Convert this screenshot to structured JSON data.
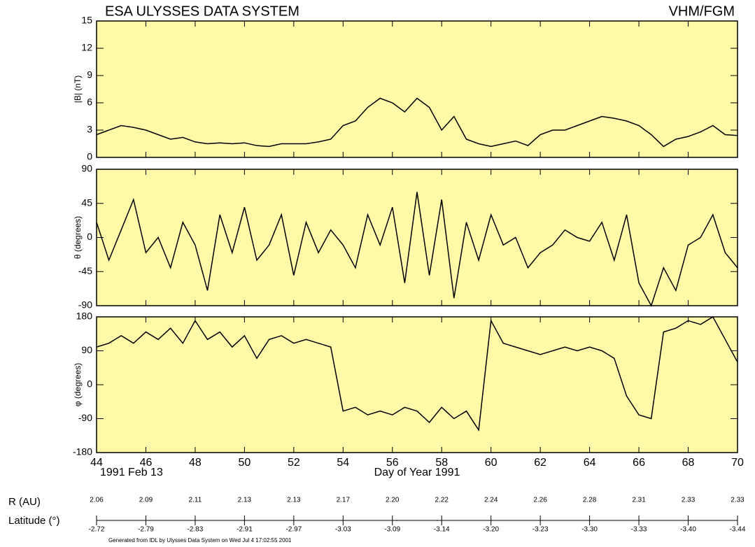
{
  "title": "ESA ULYSSES DATA SYSTEM",
  "instrument": "VHM/FGM",
  "chart_data": {
    "type": "line",
    "xlabel": "Day of Year 1991",
    "start_date": "1991 Feb 13",
    "xlim": [
      44,
      70
    ],
    "xticks": [
      44,
      46,
      48,
      50,
      52,
      54,
      56,
      58,
      60,
      62,
      64,
      66,
      68,
      70
    ],
    "x": [
      44,
      44.5,
      45,
      45.5,
      46,
      46.5,
      47,
      47.5,
      48,
      48.5,
      49,
      49.5,
      50,
      50.5,
      51,
      51.5,
      52,
      52.5,
      53,
      53.5,
      54,
      54.5,
      55,
      55.5,
      56,
      56.5,
      57,
      57.5,
      58,
      58.5,
      59,
      59.5,
      60,
      60.5,
      61,
      61.5,
      62,
      62.5,
      63,
      63.5,
      64,
      64.5,
      65,
      65.5,
      66,
      66.5,
      67,
      67.5,
      68,
      68.5,
      69,
      69.5,
      70
    ],
    "panels": [
      {
        "ylabel": "|B| (nT)",
        "color": "#000000",
        "ylim": [
          0,
          15
        ],
        "yticks": [
          0,
          3,
          6,
          9,
          12,
          15
        ],
        "values": [
          2.5,
          3,
          3.5,
          3.3,
          3,
          2.5,
          2,
          2.2,
          1.7,
          1.5,
          1.6,
          1.5,
          1.6,
          1.3,
          1.2,
          1.5,
          1.5,
          1.5,
          1.7,
          2,
          3.5,
          4,
          5.5,
          6.5,
          6,
          5,
          6.5,
          5.5,
          3,
          4.5,
          2,
          1.5,
          1.2,
          1.5,
          1.8,
          1.3,
          2.5,
          3,
          3,
          3.5,
          4,
          4.5,
          4.3,
          4,
          3.5,
          2.5,
          1.2,
          2,
          2.3,
          2.8,
          3.5,
          2.5,
          2.4
        ]
      },
      {
        "ylabel": "θ (degrees)",
        "color": "#000000",
        "ylim": [
          -90,
          90
        ],
        "yticks": [
          -90,
          -45,
          0,
          45,
          90
        ],
        "values": [
          20,
          -30,
          10,
          50,
          -20,
          0,
          -40,
          20,
          -10,
          -70,
          30,
          -20,
          40,
          -30,
          -10,
          30,
          -50,
          20,
          -20,
          10,
          -10,
          -40,
          30,
          -10,
          40,
          -60,
          60,
          -50,
          50,
          -80,
          20,
          -30,
          30,
          -10,
          0,
          -40,
          -20,
          -10,
          10,
          0,
          -5,
          20,
          -30,
          30,
          -60,
          -90,
          -40,
          -70,
          -10,
          0,
          30,
          -20,
          -40
        ]
      },
      {
        "ylabel": "φ (degrees)",
        "color": "#000000",
        "ylim": [
          -180,
          180
        ],
        "yticks": [
          -180,
          -90,
          0,
          90,
          180
        ],
        "values": [
          100,
          110,
          130,
          110,
          140,
          120,
          150,
          110,
          170,
          120,
          140,
          100,
          130,
          70,
          120,
          130,
          110,
          120,
          110,
          100,
          -70,
          -60,
          -80,
          -70,
          -80,
          -60,
          -70,
          -100,
          -60,
          -90,
          -70,
          -120,
          170,
          110,
          100,
          90,
          80,
          90,
          100,
          90,
          100,
          90,
          70,
          -30,
          -80,
          -90,
          140,
          150,
          170,
          160,
          180,
          120,
          60
        ]
      }
    ]
  },
  "orbit": {
    "r_label": "R (AU)",
    "r_values": [
      "2.06",
      "2.09",
      "2.11",
      "2.13",
      "2.13",
      "2.17",
      "2.20",
      "2.22",
      "2.24",
      "2.26",
      "2.28",
      "2.31",
      "2.33",
      "2.33"
    ],
    "lat_label": "Latitude (°)",
    "lat_values": [
      "-2.72",
      "-2.79",
      "-2.83",
      "-2.91",
      "-2.97",
      "-3.03",
      "-3.09",
      "-3.14",
      "-3.20",
      "-3.23",
      "-3.30",
      "-3.33",
      "-3.40",
      "-3.44"
    ]
  },
  "footer": "Generated from IDL by Ulysses Data System on Wed Jul  4 17:02:55 2001"
}
